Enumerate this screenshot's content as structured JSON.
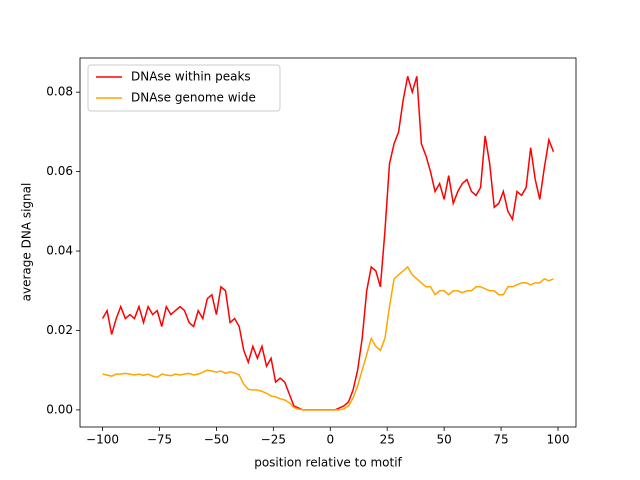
{
  "chart_data": {
    "type": "line",
    "xlabel": "position relative to motif",
    "ylabel": "average DNA signal",
    "x": [
      -100,
      -98,
      -96,
      -94,
      -92,
      -90,
      -88,
      -86,
      -84,
      -82,
      -80,
      -78,
      -76,
      -74,
      -72,
      -70,
      -68,
      -66,
      -64,
      -62,
      -60,
      -58,
      -56,
      -54,
      -52,
      -50,
      -48,
      -46,
      -44,
      -42,
      -40,
      -38,
      -36,
      -34,
      -32,
      -30,
      -28,
      -26,
      -24,
      -22,
      -20,
      -18,
      -16,
      -14,
      -12,
      -10,
      -8,
      -6,
      -4,
      -2,
      0,
      2,
      4,
      6,
      8,
      10,
      12,
      14,
      16,
      18,
      20,
      22,
      24,
      26,
      28,
      30,
      32,
      34,
      36,
      38,
      40,
      42,
      44,
      46,
      48,
      50,
      52,
      54,
      56,
      58,
      60,
      62,
      64,
      66,
      68,
      70,
      72,
      74,
      76,
      78,
      80,
      82,
      84,
      86,
      88,
      90,
      92,
      94,
      96,
      98
    ],
    "series": [
      {
        "name": "DNAse within peaks",
        "color": "#ff0000",
        "values": [
          0.023,
          0.025,
          0.019,
          0.023,
          0.026,
          0.023,
          0.024,
          0.023,
          0.026,
          0.022,
          0.026,
          0.024,
          0.025,
          0.021,
          0.026,
          0.024,
          0.025,
          0.026,
          0.025,
          0.022,
          0.021,
          0.025,
          0.023,
          0.028,
          0.029,
          0.024,
          0.031,
          0.03,
          0.022,
          0.023,
          0.021,
          0.015,
          0.012,
          0.016,
          0.013,
          0.016,
          0.011,
          0.013,
          0.007,
          0.008,
          0.007,
          0.004,
          0.001,
          0.0005,
          0,
          0,
          0,
          0,
          0,
          0,
          0,
          0,
          0.0005,
          0.001,
          0.002,
          0.005,
          0.01,
          0.018,
          0.03,
          0.036,
          0.035,
          0.031,
          0.045,
          0.062,
          0.067,
          0.07,
          0.078,
          0.084,
          0.08,
          0.084,
          0.067,
          0.064,
          0.06,
          0.055,
          0.057,
          0.053,
          0.059,
          0.052,
          0.055,
          0.057,
          0.058,
          0.055,
          0.054,
          0.056,
          0.069,
          0.062,
          0.051,
          0.052,
          0.055,
          0.05,
          0.048,
          0.055,
          0.054,
          0.056,
          0.066,
          0.058,
          0.053,
          0.061,
          0.068,
          0.065
        ]
      },
      {
        "name": "DNAse genome wide",
        "color": "#ffa500",
        "values": [
          0.009,
          0.0088,
          0.0085,
          0.009,
          0.009,
          0.0092,
          0.009,
          0.0088,
          0.009,
          0.0087,
          0.009,
          0.0085,
          0.0082,
          0.009,
          0.0088,
          0.0086,
          0.009,
          0.0088,
          0.009,
          0.0092,
          0.0088,
          0.009,
          0.0095,
          0.01,
          0.0098,
          0.0095,
          0.0098,
          0.0092,
          0.0096,
          0.0093,
          0.0088,
          0.0065,
          0.0052,
          0.005,
          0.005,
          0.0047,
          0.0042,
          0.0035,
          0.0033,
          0.0028,
          0.0025,
          0.0018,
          0.0006,
          0.0002,
          0,
          0,
          0,
          0,
          0,
          0,
          0,
          0,
          0,
          0.0003,
          0.001,
          0.003,
          0.006,
          0.01,
          0.014,
          0.018,
          0.016,
          0.015,
          0.018,
          0.026,
          0.033,
          0.034,
          0.035,
          0.036,
          0.034,
          0.033,
          0.032,
          0.031,
          0.031,
          0.029,
          0.03,
          0.03,
          0.029,
          0.03,
          0.03,
          0.0295,
          0.03,
          0.03,
          0.031,
          0.031,
          0.0305,
          0.03,
          0.03,
          0.029,
          0.029,
          0.031,
          0.031,
          0.0315,
          0.032,
          0.032,
          0.0315,
          0.032,
          0.032,
          0.033,
          0.0325,
          0.033
        ]
      }
    ],
    "xlim": [
      -109.9,
      107.9
    ],
    "ylim": [
      -0.0043,
      0.0886
    ],
    "xticks": [
      {
        "value": -100,
        "label": "−100"
      },
      {
        "value": -75,
        "label": "−75"
      },
      {
        "value": -50,
        "label": "−50"
      },
      {
        "value": -25,
        "label": "−25"
      },
      0,
      25,
      50,
      75,
      100
    ],
    "yticks": [
      {
        "value": 0,
        "label": "0.00"
      },
      {
        "value": 0.02,
        "label": "0.02"
      },
      {
        "value": 0.04,
        "label": "0.04"
      },
      {
        "value": 0.06,
        "label": "0.06"
      },
      {
        "value": 0.08,
        "label": "0.08"
      }
    ],
    "legend": "upper left"
  }
}
